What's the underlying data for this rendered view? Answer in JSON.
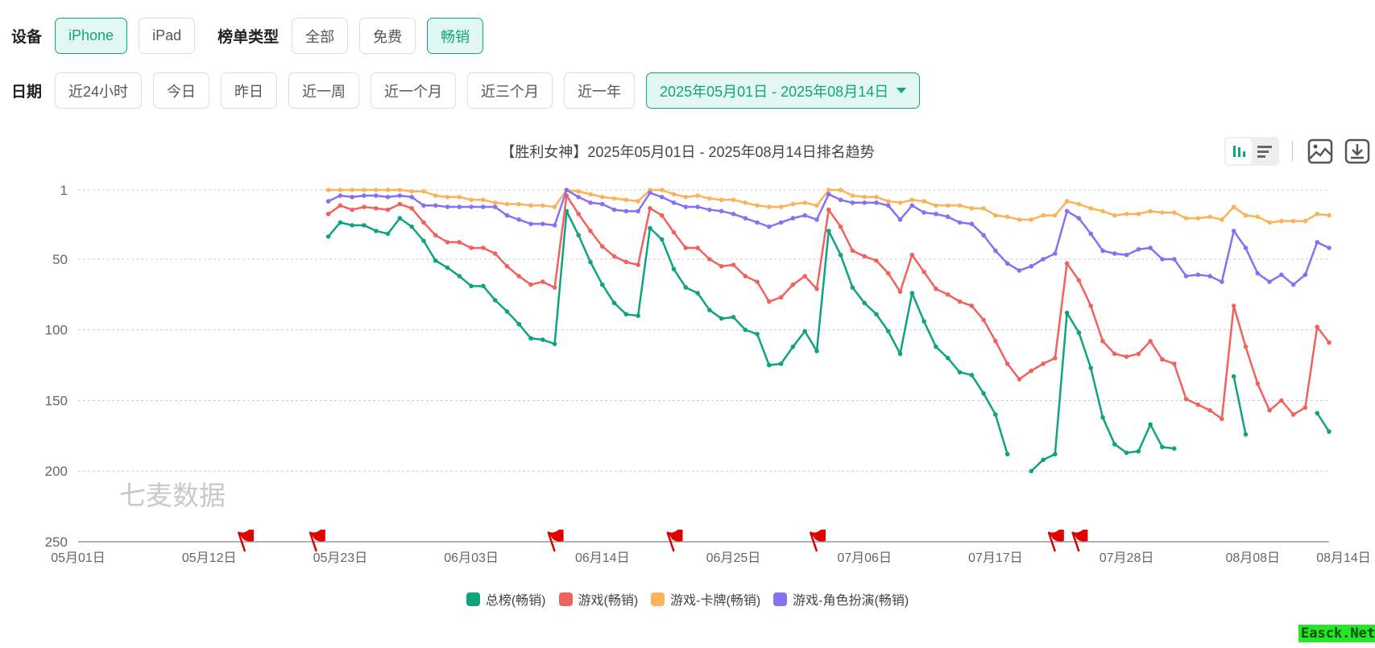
{
  "filters": {
    "device_label": "设备",
    "devices": [
      {
        "label": "iPhone",
        "active": true
      },
      {
        "label": "iPad",
        "active": false
      }
    ],
    "chart_type_label": "榜单类型",
    "chart_types": [
      {
        "label": "全部",
        "active": false
      },
      {
        "label": "免费",
        "active": false
      },
      {
        "label": "畅销",
        "active": true
      }
    ],
    "date_label": "日期",
    "date_presets": [
      {
        "label": "近24小时"
      },
      {
        "label": "今日"
      },
      {
        "label": "昨日"
      },
      {
        "label": "近一周"
      },
      {
        "label": "近一个月"
      },
      {
        "label": "近三个月"
      },
      {
        "label": "近一年"
      }
    ],
    "date_range": "2025年05月01日 - 2025年08月14日"
  },
  "toolbar": {
    "icons": [
      "bar-chart-icon",
      "list-icon",
      "image-icon",
      "download-icon"
    ]
  },
  "watermark": "七麦数据",
  "corner_badge": "Easck.Net",
  "chart_data": {
    "type": "line",
    "title": "【胜利女神】2025年05月01日 - 2025年08月14日排名趋势",
    "xlabel": "",
    "ylabel": "",
    "y_inverted": true,
    "ylim": [
      1,
      250
    ],
    "y_ticks": [
      1,
      50,
      100,
      150,
      200,
      250
    ],
    "x_ticks": [
      "05月01日",
      "05月12日",
      "05月23日",
      "06月03日",
      "06月14日",
      "06月25日",
      "07月06日",
      "07月17日",
      "07月28日",
      "08月08日",
      "08月14日"
    ],
    "x_range": [
      "2025-05-01",
      "2025-08-14"
    ],
    "grid": "horizontal dashed",
    "legend_position": "bottom",
    "x_start": "2025-05-22",
    "series": [
      {
        "name": "总榜(畅销)",
        "color": "#0fa37f",
        "values": [
          34,
          24,
          26,
          26,
          30,
          32,
          21,
          27,
          37,
          51,
          56,
          62,
          69,
          69,
          79,
          87,
          96,
          106,
          107,
          110,
          16,
          33,
          52,
          68,
          81,
          89,
          90,
          28,
          36,
          57,
          70,
          74,
          86,
          92,
          91,
          100,
          103,
          125,
          124,
          112,
          101,
          115,
          30,
          47,
          70,
          81,
          89,
          101,
          117,
          74,
          94,
          112,
          120,
          130,
          132,
          145,
          160,
          188,
          null,
          200,
          192,
          188,
          88,
          102,
          127,
          162,
          181,
          187,
          186,
          167,
          183,
          184,
          null,
          null,
          null,
          null,
          133,
          174,
          null,
          null,
          null,
          null,
          null,
          159,
          172
        ]
      },
      {
        "name": "游戏(畅销)",
        "color": "#f0625d",
        "values": [
          18,
          12,
          15,
          13,
          14,
          15,
          11,
          14,
          24,
          33,
          38,
          38,
          42,
          42,
          46,
          55,
          62,
          68,
          66,
          70,
          5,
          18,
          30,
          41,
          48,
          52,
          54,
          14,
          19,
          31,
          42,
          42,
          50,
          55,
          54,
          62,
          66,
          80,
          77,
          68,
          62,
          71,
          15,
          27,
          44,
          48,
          51,
          60,
          73,
          47,
          59,
          71,
          75,
          80,
          83,
          93,
          108,
          124,
          135,
          129,
          124,
          120,
          53,
          65,
          83,
          108,
          117,
          119,
          117,
          108,
          121,
          124,
          149,
          153,
          157,
          163,
          83,
          112,
          138,
          157,
          150,
          160,
          155,
          98,
          109
        ]
      },
      {
        "name": "游戏-卡牌(畅销)",
        "color": "#fbb35b",
        "values": [
          1,
          1,
          1,
          1,
          1,
          1,
          1,
          2,
          2,
          5,
          6,
          6,
          8,
          8,
          10,
          11,
          11,
          12,
          12,
          13,
          1,
          2,
          4,
          6,
          7,
          8,
          9,
          1,
          1,
          4,
          6,
          5,
          7,
          8,
          8,
          10,
          12,
          13,
          13,
          11,
          10,
          12,
          1,
          1,
          5,
          6,
          6,
          9,
          10,
          8,
          9,
          12,
          12,
          12,
          14,
          14,
          19,
          20,
          22,
          22,
          19,
          19,
          9,
          11,
          14,
          16,
          19,
          18,
          18,
          16,
          17,
          17,
          21,
          21,
          20,
          22,
          13,
          19,
          20,
          24,
          23,
          23,
          23,
          18,
          19
        ]
      },
      {
        "name": "游戏-角色扮演(畅销)",
        "color": "#8571f4",
        "values": [
          9,
          5,
          6,
          5,
          5,
          6,
          5,
          6,
          12,
          12,
          13,
          13,
          13,
          13,
          13,
          19,
          22,
          25,
          25,
          26,
          1,
          6,
          10,
          11,
          15,
          16,
          16,
          3,
          6,
          10,
          13,
          13,
          15,
          16,
          18,
          21,
          24,
          27,
          24,
          21,
          19,
          22,
          4,
          8,
          10,
          10,
          10,
          12,
          22,
          12,
          17,
          18,
          20,
          24,
          25,
          33,
          44,
          53,
          58,
          55,
          50,
          46,
          16,
          21,
          32,
          44,
          46,
          47,
          43,
          42,
          50,
          50,
          62,
          61,
          62,
          66,
          30,
          42,
          60,
          66,
          61,
          68,
          61,
          38,
          42
        ]
      }
    ],
    "event_flags": [
      "05月15日",
      "05月21日",
      "06月10日",
      "06月20日",
      "07月02日",
      "07月22日",
      "07月24日"
    ]
  }
}
